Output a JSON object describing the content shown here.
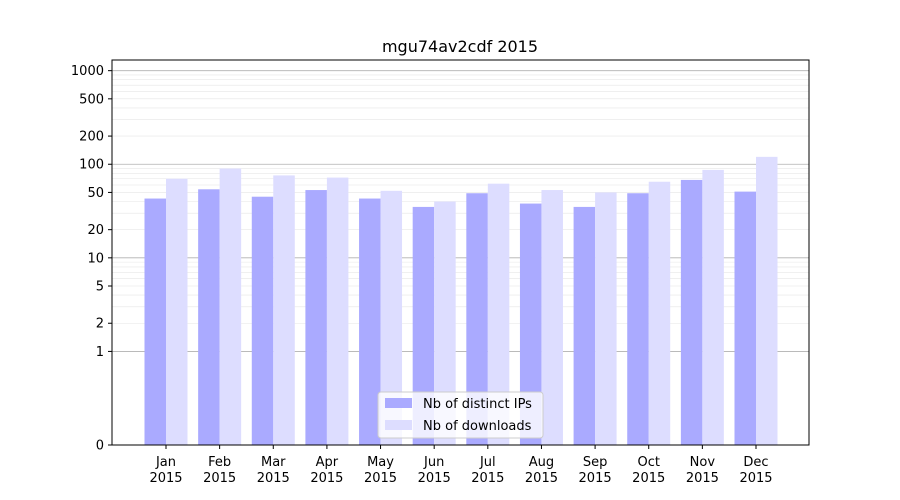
{
  "chart_data": {
    "type": "bar",
    "title": "mgu74av2cdf 2015",
    "xlabel": "",
    "ylabel": "",
    "yscale": "symlog",
    "ylim": [
      0,
      1300
    ],
    "yticks": [
      0,
      1,
      2,
      5,
      10,
      20,
      50,
      100,
      200,
      500,
      1000
    ],
    "ytick_labels": [
      "0",
      "1",
      "2",
      "5",
      "10",
      "20",
      "50",
      "100",
      "200",
      "500",
      "1000"
    ],
    "categories": [
      "Jan\n2015",
      "Feb\n2015",
      "Mar\n2015",
      "Apr\n2015",
      "May\n2015",
      "Jun\n2015",
      "Jul\n2015",
      "Aug\n2015",
      "Sep\n2015",
      "Oct\n2015",
      "Nov\n2015",
      "Dec\n2015"
    ],
    "series": [
      {
        "name": "Nb of distinct IPs",
        "color": "#aaaaff",
        "values": [
          43,
          54,
          45,
          53,
          43,
          35,
          49,
          38,
          35,
          49,
          68,
          51
        ]
      },
      {
        "name": "Nb of downloads",
        "color": "#ddddff",
        "values": [
          70,
          90,
          76,
          72,
          52,
          40,
          62,
          53,
          50,
          65,
          87,
          120
        ]
      }
    ],
    "grid": true,
    "legend_position": "lower center"
  }
}
